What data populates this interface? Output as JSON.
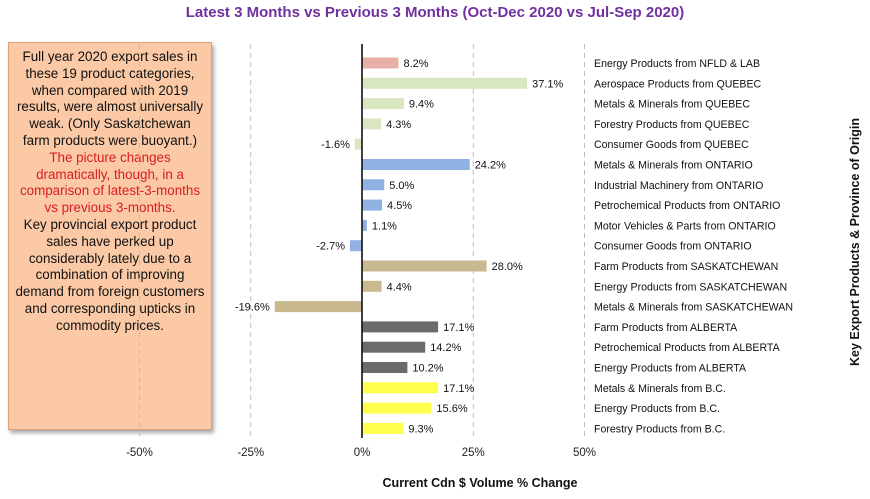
{
  "chart_data": {
    "type": "bar",
    "orientation": "horizontal",
    "title": "Latest 3 Months vs Previous 3 Months (Oct-Dec 2020 vs Jul-Sep 2020)",
    "xlabel": "Current Cdn $ Volume % Change",
    "ylabel": "Key Export Products & Province of Origin",
    "xlim": [
      -50,
      50
    ],
    "xticks": [
      "-50%",
      "-25%",
      "0%",
      "25%",
      "50%"
    ],
    "tick_values": [
      -50,
      -25,
      0,
      25,
      50
    ],
    "gridlines": "vertical dashed",
    "categories": [
      "Energy Products from NFLD & LAB",
      "Aerospace Products from QUEBEC",
      "Metals & Minerals from QUEBEC",
      "Forestry Products from QUEBEC",
      "Consumer Goods from QUEBEC",
      "Metals & Minerals from ONTARIO",
      "Industrial Machinery from ONTARIO",
      "Petrochemical Products from ONTARIO",
      "Motor Vehicles & Parts from ONTARIO",
      "Consumer Goods from ONTARIO",
      "Farm Products from SASKATCHEWAN",
      "Energy Products from SASKATCHEWAN",
      "Metals & Minerals from SASKATCHEWAN",
      "Farm Products from ALBERTA",
      "Petrochemical Products from ALBERTA",
      "Energy Products from ALBERTA",
      "Metals & Minerals from B.C.",
      "Energy Products from B.C.",
      "Forestry Products from B.C."
    ],
    "values": [
      8.2,
      37.1,
      9.4,
      4.3,
      -1.6,
      24.2,
      5.0,
      4.5,
      1.1,
      -2.7,
      28.0,
      4.4,
      -19.6,
      17.1,
      14.2,
      10.2,
      17.1,
      15.6,
      9.3
    ],
    "value_labels": [
      "8.2%",
      "37.1%",
      "9.4%",
      "4.3%",
      "-1.6%",
      "24.2%",
      "5.0%",
      "4.5%",
      "1.1%",
      "-2.7%",
      "28.0%",
      "4.4%",
      "-19.6%",
      "17.1%",
      "14.2%",
      "10.2%",
      "17.1%",
      "15.6%",
      "9.3%"
    ],
    "provinces": [
      "NFLD",
      "QUEBEC",
      "QUEBEC",
      "QUEBEC",
      "QUEBEC",
      "ONTARIO",
      "ONTARIO",
      "ONTARIO",
      "ONTARIO",
      "ONTARIO",
      "SASKATCHEWAN",
      "SASKATCHEWAN",
      "SASKATCHEWAN",
      "ALBERTA",
      "ALBERTA",
      "ALBERTA",
      "BC",
      "BC",
      "BC"
    ],
    "colors": {
      "NFLD": "#e6b0a6",
      "QUEBEC": "#d8e7bf",
      "ONTARIO": "#8fb1e3",
      "SASKATCHEWAN": "#c9b98f",
      "ALBERTA": "#6b6b6b",
      "BC": "#ffff4d"
    }
  },
  "note": {
    "part1": "Full year 2020 export sales in these 19 product categories, when compared with 2019 results, were almost universally weak. (Only Saskatchewan farm products were buoyant.)",
    "part2": "The picture changes dramatically, though, in a comparison of latest-3-months vs previous 3-months.",
    "part3": "Key provincial export product sales have perked up considerably lately due to a combination of improving demand from foreign customers and corresponding upticks in commodity prices."
  }
}
